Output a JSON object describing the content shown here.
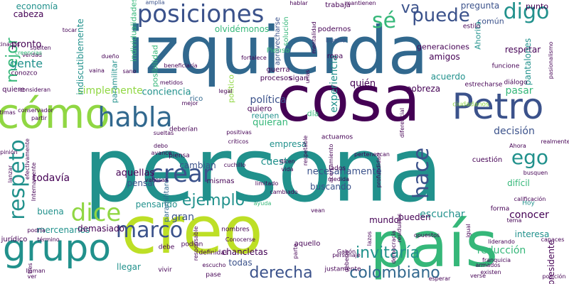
{
  "palette": {
    "purple": "#440154",
    "indigo": "#3b528b",
    "blue": "#31688e",
    "teal": "#21918c",
    "green": "#35b779",
    "lime": "#90d743",
    "yellow": "#bddf26",
    "pale": "#dde318"
  },
  "words": [
    {
      "text": "persona",
      "color": "teal",
      "rot": 0
    },
    {
      "text": "izquierda",
      "color": "blue",
      "rot": 0
    },
    {
      "text": "cosa",
      "color": "purple",
      "rot": 0
    },
    {
      "text": "creo",
      "color": "yellow",
      "rot": 0
    },
    {
      "text": "país",
      "color": "green",
      "rot": 0
    },
    {
      "text": "cómo",
      "color": "lime",
      "rot": 0
    },
    {
      "text": "Petro",
      "color": "indigo",
      "rot": 0
    },
    {
      "text": "posiciones",
      "color": "indigo",
      "rot": 0
    },
    {
      "text": "grupo",
      "color": "teal",
      "rot": 0
    },
    {
      "text": "habla",
      "color": "blue",
      "rot": 0
    },
    {
      "text": "crear",
      "color": "indigo",
      "rot": 0
    },
    {
      "text": "sé",
      "color": "green",
      "rot": 0
    },
    {
      "text": "puede",
      "color": "indigo",
      "rot": 0
    },
    {
      "text": "digo",
      "color": "teal",
      "rot": 0
    },
    {
      "text": "va",
      "color": "indigo",
      "rot": 0
    },
    {
      "text": "respeto",
      "color": "teal",
      "rot": -90
    },
    {
      "text": "dice",
      "color": "lime",
      "rot": 0
    },
    {
      "text": "marco",
      "color": "indigo",
      "rot": 0
    },
    {
      "text": "hace",
      "color": "indigo",
      "rot": -90
    },
    {
      "text": "ego",
      "color": "teal",
      "rot": 0
    },
    {
      "text": "ejemplo",
      "color": "teal",
      "rot": 0
    },
    {
      "text": "derecha",
      "color": "indigo",
      "rot": 0
    },
    {
      "text": "colombiano",
      "color": "blue",
      "rot": 0
    },
    {
      "text": "invitaría",
      "color": "teal",
      "rot": 0
    },
    {
      "text": "mejor",
      "color": "green",
      "rot": -90
    },
    {
      "text": "gente",
      "color": "teal",
      "rot": 0
    },
    {
      "text": "pronto",
      "color": "purple",
      "rot": 0
    },
    {
      "text": "economía",
      "color": "teal",
      "rot": 0
    },
    {
      "text": "cabeza",
      "color": "purple",
      "rot": 0
    },
    {
      "text": "simplemente",
      "color": "lime",
      "rot": 0
    },
    {
      "text": "olvidémonos",
      "color": "green",
      "rot": 0
    },
    {
      "text": "pregunta",
      "color": "indigo",
      "rot": 0
    },
    {
      "text": "común",
      "color": "indigo",
      "rot": 0
    },
    {
      "text": "punto",
      "color": "purple",
      "rot": 0
    },
    {
      "text": "trabaja",
      "color": "purple",
      "rot": 0
    },
    {
      "text": "generaciones",
      "color": "purple",
      "rot": 0
    },
    {
      "text": "amigos",
      "color": "purple",
      "rot": 0
    },
    {
      "text": "respetar",
      "color": "purple",
      "rot": 0
    },
    {
      "text": "acuerdo",
      "color": "teal",
      "rot": 0
    },
    {
      "text": "pobreza",
      "color": "purple",
      "rot": 0
    },
    {
      "text": "pasar",
      "color": "green",
      "rot": 0
    },
    {
      "text": "quién",
      "color": "purple",
      "rot": 0
    },
    {
      "text": "política",
      "color": "indigo",
      "rot": 0
    },
    {
      "text": "conciencia",
      "color": "teal",
      "rot": 0
    },
    {
      "text": "rico",
      "color": "blue",
      "rot": 0
    },
    {
      "text": "quiero",
      "color": "purple",
      "rot": 0
    },
    {
      "text": "reúnen",
      "color": "teal",
      "rot": 0
    },
    {
      "text": "quieran",
      "color": "green",
      "rot": 0
    },
    {
      "text": "día",
      "color": "green",
      "rot": 0
    },
    {
      "text": "decisión",
      "color": "indigo",
      "rot": 0
    },
    {
      "text": "empresa",
      "color": "teal",
      "rot": 0
    },
    {
      "text": "cambian",
      "color": "indigo",
      "rot": 0
    },
    {
      "text": "cuesta",
      "color": "teal",
      "rot": 0
    },
    {
      "text": "aquellas",
      "color": "purple",
      "rot": 0
    },
    {
      "text": "pensar",
      "color": "indigo",
      "rot": 0
    },
    {
      "text": "todavía",
      "color": "purple",
      "rot": 0
    },
    {
      "text": "buena",
      "color": "teal",
      "rot": 0
    },
    {
      "text": "gran",
      "color": "indigo",
      "rot": 0
    },
    {
      "text": "pensando",
      "color": "teal",
      "rot": 0
    },
    {
      "text": "conocer",
      "color": "purple",
      "rot": 0
    },
    {
      "text": "escuchar",
      "color": "teal",
      "rot": 0
    },
    {
      "text": "difícil",
      "color": "green",
      "rot": 0
    },
    {
      "text": "pueden",
      "color": "purple",
      "rot": 0
    },
    {
      "text": "buscando",
      "color": "indigo",
      "rot": 0
    },
    {
      "text": "necesariamente",
      "color": "indigo",
      "rot": 0
    },
    {
      "text": "llegar",
      "color": "teal",
      "rot": 0
    },
    {
      "text": "mercenarios",
      "color": "teal",
      "rot": 0
    },
    {
      "text": "demasiado",
      "color": "purple",
      "rot": 0
    },
    {
      "text": "chancletas",
      "color": "purple",
      "rot": 0
    },
    {
      "text": "todas",
      "color": "indigo",
      "rot": 0
    },
    {
      "text": "reducción",
      "color": "green",
      "rot": 0
    },
    {
      "text": "interesa",
      "color": "teal",
      "rot": 0
    },
    {
      "text": "mundo",
      "color": "purple",
      "rot": 0
    },
    {
      "text": "experiencia",
      "color": "teal",
      "rot": -90
    },
    {
      "text": "indiscutiblemente",
      "color": "teal",
      "rot": -90
    },
    {
      "text": "paramilitar",
      "color": "teal",
      "rot": -90
    },
    {
      "text": "paramilitares",
      "color": "blue",
      "rot": -90
    },
    {
      "text": "posibilidad",
      "color": "green",
      "rot": -90
    },
    {
      "text": "político",
      "color": "lime",
      "rot": -90
    },
    {
      "text": "solución",
      "color": "green",
      "rot": -90
    },
    {
      "text": "Ahorita",
      "color": "teal",
      "rot": -90
    },
    {
      "text": "pantalones",
      "color": "teal",
      "rot": -90
    },
    {
      "text": "presidente",
      "color": "purple",
      "rot": -90
    },
    {
      "text": "individualidades",
      "color": "green",
      "rot": -90
    },
    {
      "text": "aprovecharse",
      "color": "indigo",
      "rot": -90
    },
    {
      "text": "Pienso",
      "color": "green",
      "rot": 0
    },
    {
      "text": "guerra",
      "color": "purple",
      "rot": 0
    },
    {
      "text": "procesos",
      "color": "purple",
      "rot": 0
    },
    {
      "text": "sigan",
      "color": "purple",
      "rot": 0
    },
    {
      "text": "podernos",
      "color": "purple",
      "rot": 0
    },
    {
      "text": "bueno",
      "color": "indigo",
      "rot": 0
    },
    {
      "text": "ropa",
      "color": "purple",
      "rot": 0
    },
    {
      "text": "estilo",
      "color": "purple",
      "rot": 0
    },
    {
      "text": "diálogo",
      "color": "purple",
      "rot": 0
    },
    {
      "text": "ciudadanos",
      "color": "lime",
      "rot": 0
    },
    {
      "text": "funcione",
      "color": "purple",
      "rot": 0
    },
    {
      "text": "estrecharse",
      "color": "purple",
      "rot": 0
    },
    {
      "text": "legal",
      "color": "purple",
      "rot": 0
    },
    {
      "text": "deberían",
      "color": "purple",
      "rot": 0
    },
    {
      "text": "positivas",
      "color": "purple",
      "rot": 0
    },
    {
      "text": "críticos",
      "color": "purple",
      "rot": 0
    },
    {
      "text": "actuamos",
      "color": "purple",
      "rot": 0
    },
    {
      "text": "mismas",
      "color": "purple",
      "rot": 0
    },
    {
      "text": "limitado",
      "color": "purple",
      "rot": 0
    },
    {
      "text": "medida",
      "color": "purple",
      "rot": 0
    },
    {
      "text": "lados",
      "color": "purple",
      "rot": 0
    },
    {
      "text": "cuestión",
      "color": "purple",
      "rot": 0
    },
    {
      "text": "busquen",
      "color": "purple",
      "rot": 0
    },
    {
      "text": "Hoy",
      "color": "teal",
      "rot": 0
    },
    {
      "text": "calificación",
      "color": "purple",
      "rot": 0
    },
    {
      "text": "tema",
      "color": "purple",
      "rot": 0
    },
    {
      "text": "forma",
      "color": "purple",
      "rot": 0
    },
    {
      "text": "liderando",
      "color": "purple",
      "rot": 0
    },
    {
      "text": "realmente",
      "color": "purple",
      "rot": 0
    },
    {
      "text": "Ahora",
      "color": "purple",
      "rot": 0
    },
    {
      "text": "capaces",
      "color": "purple",
      "rot": 0
    },
    {
      "text": "posición",
      "color": "purple",
      "rot": 0
    },
    {
      "text": "verse",
      "color": "purple",
      "rot": 0
    },
    {
      "text": "existen",
      "color": "purple",
      "rot": 0
    },
    {
      "text": "esperar",
      "color": "purple",
      "rot": 0
    },
    {
      "text": "armados",
      "color": "purple",
      "rot": 0
    },
    {
      "text": "opuestos",
      "color": "purple",
      "rot": 0
    },
    {
      "text": "Gabón",
      "color": "purple",
      "rot": 0
    },
    {
      "text": "justamente",
      "color": "purple",
      "rot": 0
    },
    {
      "text": "personaje",
      "color": "purple",
      "rot": 0
    },
    {
      "text": "aquello",
      "color": "purple",
      "rot": 0
    },
    {
      "text": "vean",
      "color": "purple",
      "rot": 0
    },
    {
      "text": "cambiado",
      "color": "purple",
      "rot": 0
    },
    {
      "text": "ayuda",
      "color": "green",
      "rot": 0
    },
    {
      "text": "nombres",
      "color": "purple",
      "rot": 0
    },
    {
      "text": "Conocerse",
      "color": "purple",
      "rot": 0
    },
    {
      "text": "definidas",
      "color": "purple",
      "rot": 0
    },
    {
      "text": "debe",
      "color": "purple",
      "rot": 0
    },
    {
      "text": "podían",
      "color": "purple",
      "rot": 0
    },
    {
      "text": "pase",
      "color": "purple",
      "rot": 0
    },
    {
      "text": "vivir",
      "color": "purple",
      "rot": 0
    },
    {
      "text": "escucho",
      "color": "purple",
      "rot": 0
    },
    {
      "text": "llaman",
      "color": "purple",
      "rot": 0
    },
    {
      "text": "término",
      "color": "purple",
      "rot": 0
    },
    {
      "text": "jurídico",
      "color": "purple",
      "rot": 0
    },
    {
      "text": "podría",
      "color": "purple",
      "rot": 0
    },
    {
      "text": "valiosas",
      "color": "purple",
      "rot": 0
    },
    {
      "text": "debo",
      "color": "purple",
      "rot": 0
    },
    {
      "text": "avance",
      "color": "purple",
      "rot": 0
    },
    {
      "text": "sueltas",
      "color": "purple",
      "rot": 0
    },
    {
      "text": "cuchillo",
      "color": "purple",
      "rot": 0
    },
    {
      "text": "dicen",
      "color": "purple",
      "rot": 0
    },
    {
      "text": "vida",
      "color": "purple",
      "rot": 0
    },
    {
      "text": "piensa",
      "color": "purple",
      "rot": 0
    },
    {
      "text": "metidos",
      "color": "purple",
      "rot": 0
    },
    {
      "text": "tocar",
      "color": "purple",
      "rot": 0
    },
    {
      "text": "suelten",
      "color": "purple",
      "rot": 0
    },
    {
      "text": "verdad",
      "color": "purple",
      "rot": 0
    },
    {
      "text": "conozco",
      "color": "purple",
      "rot": 0
    },
    {
      "text": "quiere",
      "color": "purple",
      "rot": 0
    },
    {
      "text": "consideran",
      "color": "purple",
      "rot": 0
    },
    {
      "text": "creencias",
      "color": "green",
      "rot": 0
    },
    {
      "text": "amplia",
      "color": "indigo",
      "rot": 0
    },
    {
      "text": "sano",
      "color": "purple",
      "rot": 0
    },
    {
      "text": "dueño",
      "color": "purple",
      "rot": 0
    },
    {
      "text": "mejor",
      "color": "purple",
      "rot": 0
    },
    {
      "text": "conservador",
      "color": "purple",
      "rot": 0
    },
    {
      "text": "partir",
      "color": "purple",
      "rot": 0
    },
    {
      "text": "hablar",
      "color": "purple",
      "rot": 0
    },
    {
      "text": "mantienen",
      "color": "purple",
      "rot": 0
    },
    {
      "text": "opinión",
      "color": "purple",
      "rot": 0
    },
    {
      "text": "últimas",
      "color": "purple",
      "rot": 0
    },
    {
      "text": "obstinados",
      "color": "purple",
      "rot": 0
    },
    {
      "text": "beneficiaría",
      "color": "purple",
      "rot": 0
    },
    {
      "text": "fortalece",
      "color": "purple",
      "rot": 0
    },
    {
      "text": "respetable",
      "color": "purple",
      "rot": -90
    },
    {
      "text": "debería",
      "color": "purple",
      "rot": -90
    },
    {
      "text": "lazos",
      "color": "purple",
      "rot": -90
    },
    {
      "text": "residuales",
      "color": "purple",
      "rot": -90
    },
    {
      "text": "parte",
      "color": "purple",
      "rot": -90
    },
    {
      "text": "democracia",
      "color": "purple",
      "rot": -90
    },
    {
      "text": "igual",
      "color": "purple",
      "rot": -90
    },
    {
      "text": "acercamiento",
      "color": "purple",
      "rot": -90
    },
    {
      "text": "pasionalismo",
      "color": "purple",
      "rot": -90
    },
    {
      "text": "diferencial",
      "color": "purple",
      "rot": -90
    },
    {
      "text": "profundidad",
      "color": "purple",
      "rot": -90
    },
    {
      "text": "mentalidad",
      "color": "purple",
      "rot": -90
    },
    {
      "text": "unas",
      "color": "purple",
      "rot": -90
    },
    {
      "text": "efectivamente",
      "color": "purple",
      "rot": -90
    },
    {
      "text": "Internamente",
      "color": "purple",
      "rot": -90
    },
    {
      "text": "lanzar",
      "color": "purple",
      "rot": -90
    },
    {
      "text": "responsable",
      "color": "purple",
      "rot": -90
    },
    {
      "text": "tres",
      "color": "purple",
      "rot": -90
    },
    {
      "text": "ver",
      "color": "purple",
      "rot": 0
    },
    {
      "text": "franquicia",
      "color": "purple",
      "rot": 0
    },
    {
      "text": "vaina",
      "color": "purple",
      "rot": 0
    },
    {
      "text": "pertenezcan",
      "color": "purple",
      "rot": 0
    },
    {
      "text": "correctas",
      "color": "purple",
      "rot": -90
    },
    {
      "text": "manifiestan",
      "color": "purple",
      "rot": 0
    },
    {
      "text": "pedir",
      "color": "purple",
      "rot": 0
    },
    {
      "text": "vínculos",
      "color": "purple",
      "rot": 0
    },
    {
      "text": "primer",
      "color": "purple",
      "rot": 0
    },
    {
      "text": "concepción",
      "color": "purple",
      "rot": -90
    },
    {
      "text": "acostumbrados",
      "color": "purple",
      "rot": -90
    }
  ]
}
